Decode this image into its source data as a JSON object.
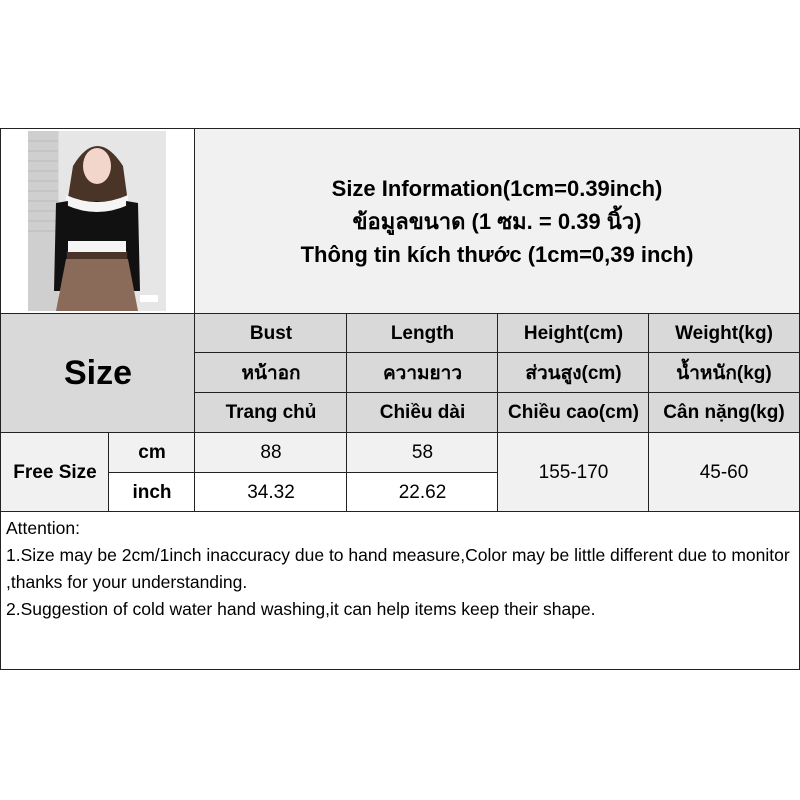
{
  "header": {
    "title_lines": [
      "Size Information(1cm=0.39inch)",
      "ข้อมูลขนาด (1 ซม. = 0.39 นิ้ว)",
      "Thông tin kích thước (1cm=0,39 inch)"
    ]
  },
  "table": {
    "size_label": "Size",
    "columns": [
      {
        "en": "Bust",
        "th": "หน้าอก",
        "vi": "Trang chủ"
      },
      {
        "en": "Length",
        "th": "ความยาว",
        "vi": "Chiều dài"
      },
      {
        "en": "Height(cm)",
        "th": "ส่วนสูง(cm)",
        "vi": "Chiều cao(cm)"
      },
      {
        "en": "Weight(kg)",
        "th": "น้ำหนัก(kg)",
        "vi": "Cân nặng(kg)"
      }
    ],
    "row": {
      "size": "Free Size",
      "cm_label": "cm",
      "inch_label": "inch",
      "bust_cm": "88",
      "length_cm": "58",
      "bust_inch": "34.32",
      "length_inch": "22.62",
      "height": "155-170",
      "weight": "45-60"
    }
  },
  "attention": {
    "heading": "Attention:",
    "lines": [
      "1.Size may be 2cm/1inch inaccuracy due to hand measure,Color may be little different due to monitor ,thanks for your understanding.",
      "2.Suggestion of cold water hand washing,it can help items keep their shape."
    ]
  }
}
